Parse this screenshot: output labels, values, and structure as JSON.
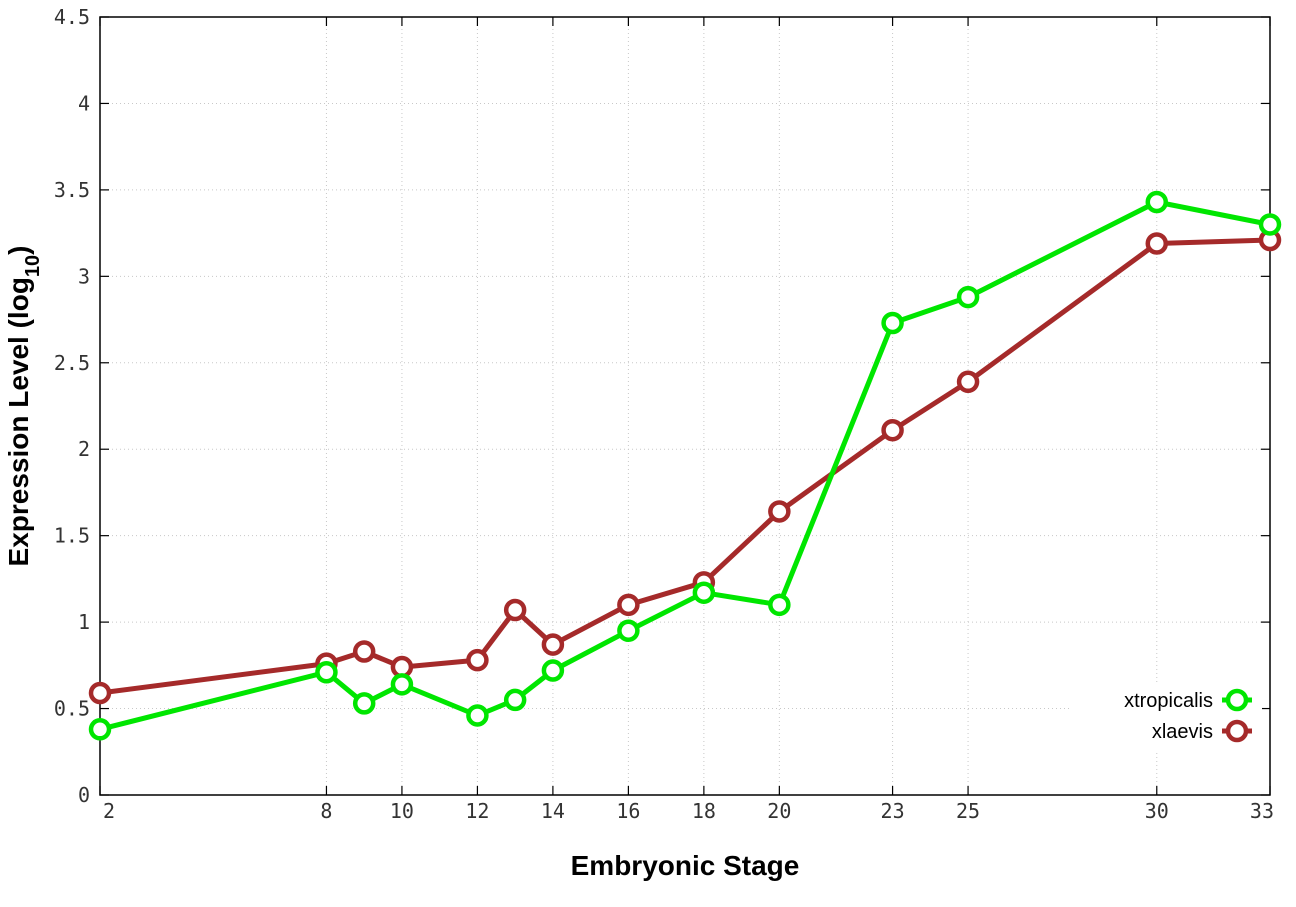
{
  "chart_data": {
    "type": "line",
    "title": "",
    "xlabel": "Embryonic Stage",
    "ylabel": {
      "main": "Expression Level (log",
      "subscript": "10",
      "close": ")"
    },
    "x": [
      2,
      8,
      9,
      10,
      12,
      13,
      14,
      16,
      18,
      20,
      23,
      25,
      30,
      33
    ],
    "x_tick_labels": [
      "2",
      "8",
      "10",
      "12",
      "14",
      "16",
      "18",
      "20",
      "23",
      "25",
      "30",
      "33"
    ],
    "y_ticks": [
      0,
      0.5,
      1,
      1.5,
      2,
      2.5,
      3,
      3.5,
      4,
      4.5
    ],
    "y_tick_labels": [
      "0",
      "0.5",
      "1",
      "1.5",
      "2",
      "2.5",
      "3",
      "3.5",
      "4",
      "4.5"
    ],
    "ylim": [
      0,
      4.5
    ],
    "grid": true,
    "legend_position": "bottom-right",
    "series": [
      {
        "name": "xtropicalis",
        "color": "#00e600",
        "values": [
          0.38,
          0.71,
          0.53,
          0.64,
          0.46,
          0.55,
          0.72,
          0.95,
          1.17,
          1.1,
          2.73,
          2.88,
          3.43,
          3.3
        ]
      },
      {
        "name": "xlaevis",
        "color": "#a52a2a",
        "values": [
          0.59,
          0.76,
          0.83,
          0.74,
          0.78,
          1.07,
          0.87,
          1.1,
          1.23,
          1.64,
          2.11,
          2.39,
          3.19,
          3.21
        ]
      }
    ]
  }
}
